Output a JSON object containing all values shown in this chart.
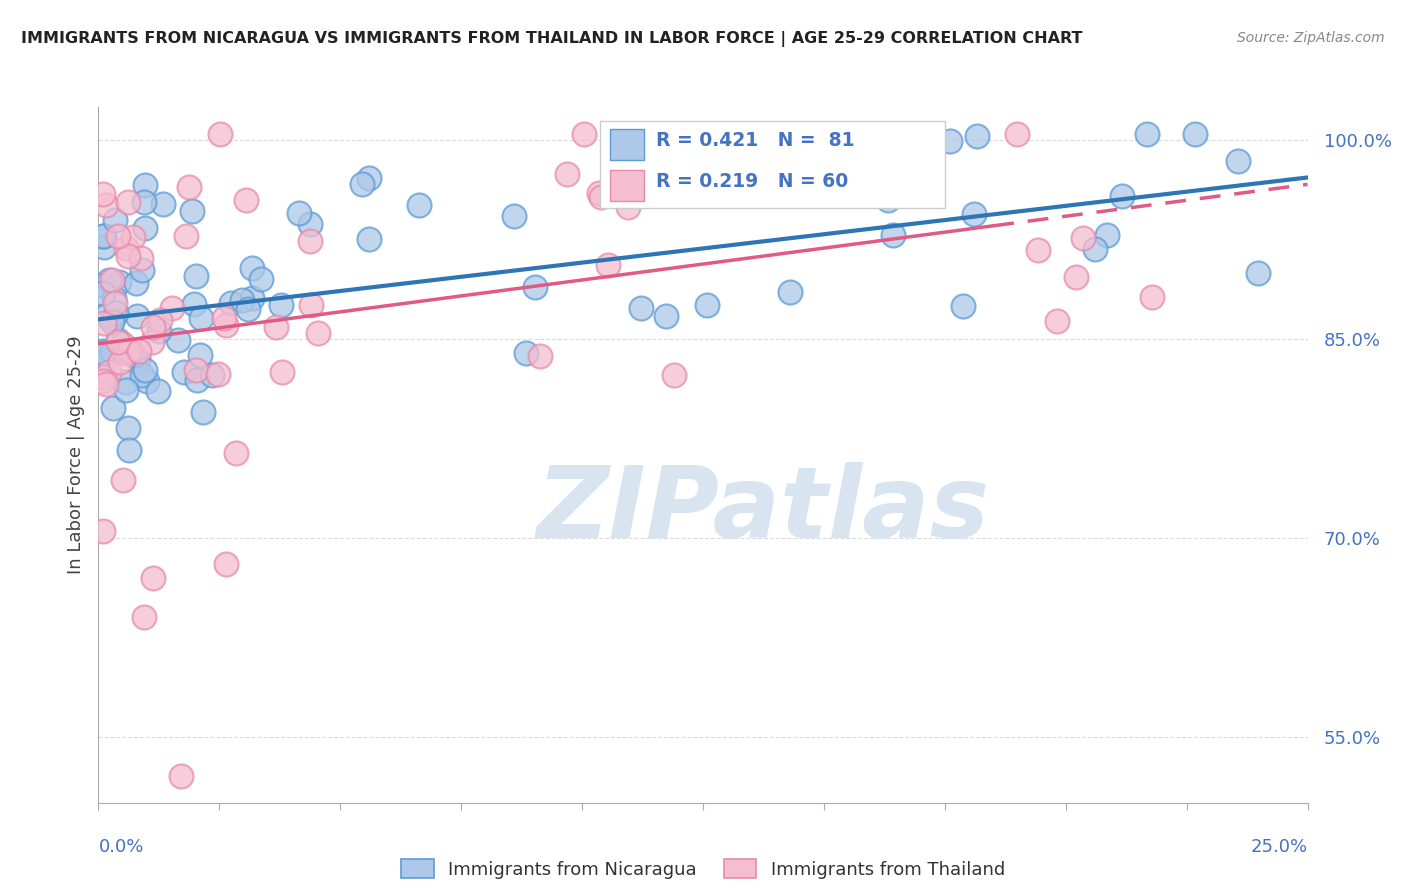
{
  "title": "IMMIGRANTS FROM NICARAGUA VS IMMIGRANTS FROM THAILAND IN LABOR FORCE | AGE 25-29 CORRELATION CHART",
  "source": "Source: ZipAtlas.com",
  "ylabel": "In Labor Force | Age 25-29",
  "xmin": 0.0,
  "xmax": 0.25,
  "ymin": 0.5,
  "ymax": 1.025,
  "yticks": [
    0.55,
    0.7,
    0.85,
    1.0
  ],
  "ytick_labels": [
    "55.0%",
    "70.0%",
    "85.0%",
    "100.0%"
  ],
  "blue_R": 0.421,
  "blue_N": 81,
  "pink_R": 0.219,
  "pink_N": 60,
  "blue_color": "#adc8e8",
  "blue_edge_color": "#5b9bd5",
  "blue_line_color": "#2e75b6",
  "pink_color": "#f4bdd0",
  "pink_edge_color": "#e88aab",
  "pink_line_color": "#e05a84",
  "legend_label_blue": "Immigrants from Nicaragua",
  "legend_label_pink": "Immigrants from Thailand",
  "tick_label_color": "#4472c4",
  "watermark_color": "#d8e4f0",
  "background_color": "#ffffff",
  "grid_color": "#cccccc"
}
